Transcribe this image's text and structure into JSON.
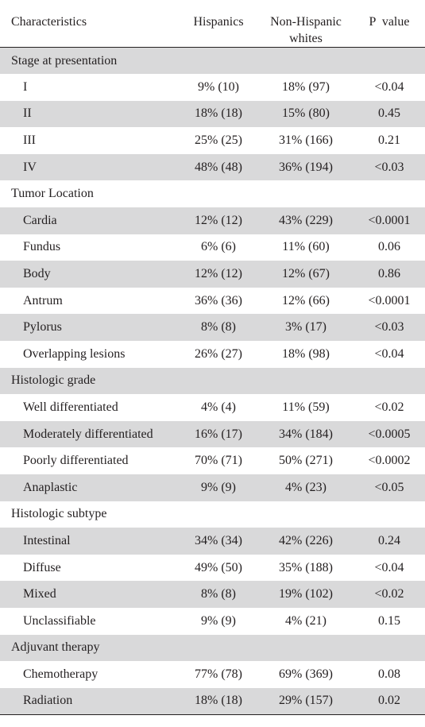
{
  "header": {
    "characteristics": "Characteristics",
    "hispanics": "Hispanics",
    "non_hispanic_line1": "Non-Hispanic",
    "non_hispanic_line2": "whites",
    "p_value": "P  value"
  },
  "rows": [
    {
      "type": "section",
      "label": "Stage at presentation",
      "shaded": true
    },
    {
      "type": "item",
      "label": "I",
      "hispanics": "9% (10)",
      "nhw": "18% (97)",
      "p": "<0.04",
      "shaded": false
    },
    {
      "type": "item",
      "label": "II",
      "hispanics": "18% (18)",
      "nhw": "15% (80)",
      "p": "0.45",
      "shaded": true
    },
    {
      "type": "item",
      "label": "III",
      "hispanics": "25% (25)",
      "nhw": "31% (166)",
      "p": "0.21",
      "shaded": false
    },
    {
      "type": "item",
      "label": "IV",
      "hispanics": "48% (48)",
      "nhw": "36% (194)",
      "p": "<0.03",
      "shaded": true
    },
    {
      "type": "section",
      "label": "Tumor Location",
      "shaded": false
    },
    {
      "type": "item",
      "label": "Cardia",
      "hispanics": "12% (12)",
      "nhw": "43% (229)",
      "p": "<0.0001",
      "shaded": true
    },
    {
      "type": "item",
      "label": "Fundus",
      "hispanics": "6% (6)",
      "nhw": "11% (60)",
      "p": "0.06",
      "shaded": false
    },
    {
      "type": "item",
      "label": "Body",
      "hispanics": "12% (12)",
      "nhw": "12% (67)",
      "p": "0.86",
      "shaded": true
    },
    {
      "type": "item",
      "label": "Antrum",
      "hispanics": "36% (36)",
      "nhw": "12% (66)",
      "p": "<0.0001",
      "shaded": false
    },
    {
      "type": "item",
      "label": "Pylorus",
      "hispanics": "8% (8)",
      "nhw": "3% (17)",
      "p": "<0.03",
      "shaded": true
    },
    {
      "type": "item",
      "label": "Overlapping lesions",
      "hispanics": "26% (27)",
      "nhw": "18% (98)",
      "p": "<0.04",
      "shaded": false
    },
    {
      "type": "section",
      "label": "Histologic grade",
      "shaded": true
    },
    {
      "type": "item",
      "label": "Well differentiated",
      "hispanics": "4% (4)",
      "nhw": "11% (59)",
      "p": "<0.02",
      "shaded": false
    },
    {
      "type": "item",
      "label": "Moderately differentiated",
      "hispanics": "16% (17)",
      "nhw": "34% (184)",
      "p": "<0.0005",
      "shaded": true
    },
    {
      "type": "item",
      "label": "Poorly differentiated",
      "hispanics": "70% (71)",
      "nhw": "50% (271)",
      "p": "<0.0002",
      "shaded": false
    },
    {
      "type": "item",
      "label": "Anaplastic",
      "hispanics": "9% (9)",
      "nhw": "4% (23)",
      "p": "<0.05",
      "shaded": true
    },
    {
      "type": "section",
      "label": "Histologic subtype",
      "shaded": false
    },
    {
      "type": "item",
      "label": "Intestinal",
      "hispanics": "34% (34)",
      "nhw": "42% (226)",
      "p": "0.24",
      "shaded": true
    },
    {
      "type": "item",
      "label": "Diffuse",
      "hispanics": "49% (50)",
      "nhw": "35% (188)",
      "p": "<0.04",
      "shaded": false
    },
    {
      "type": "item",
      "label": "Mixed",
      "hispanics": "8% (8)",
      "nhw": "19% (102)",
      "p": "<0.02",
      "shaded": true
    },
    {
      "type": "item",
      "label": "Unclassifiable",
      "hispanics": "9% (9)",
      "nhw": "4% (21)",
      "p": "0.15",
      "shaded": false
    },
    {
      "type": "section",
      "label": "Adjuvant therapy",
      "shaded": true
    },
    {
      "type": "item",
      "label": "Chemotherapy",
      "hispanics": "77% (78)",
      "nhw": "69% (369)",
      "p": "0.08",
      "shaded": false
    },
    {
      "type": "item",
      "label": "Radiation",
      "hispanics": "18% (18)",
      "nhw": "29% (157)",
      "p": "0.02",
      "shaded": true
    }
  ]
}
